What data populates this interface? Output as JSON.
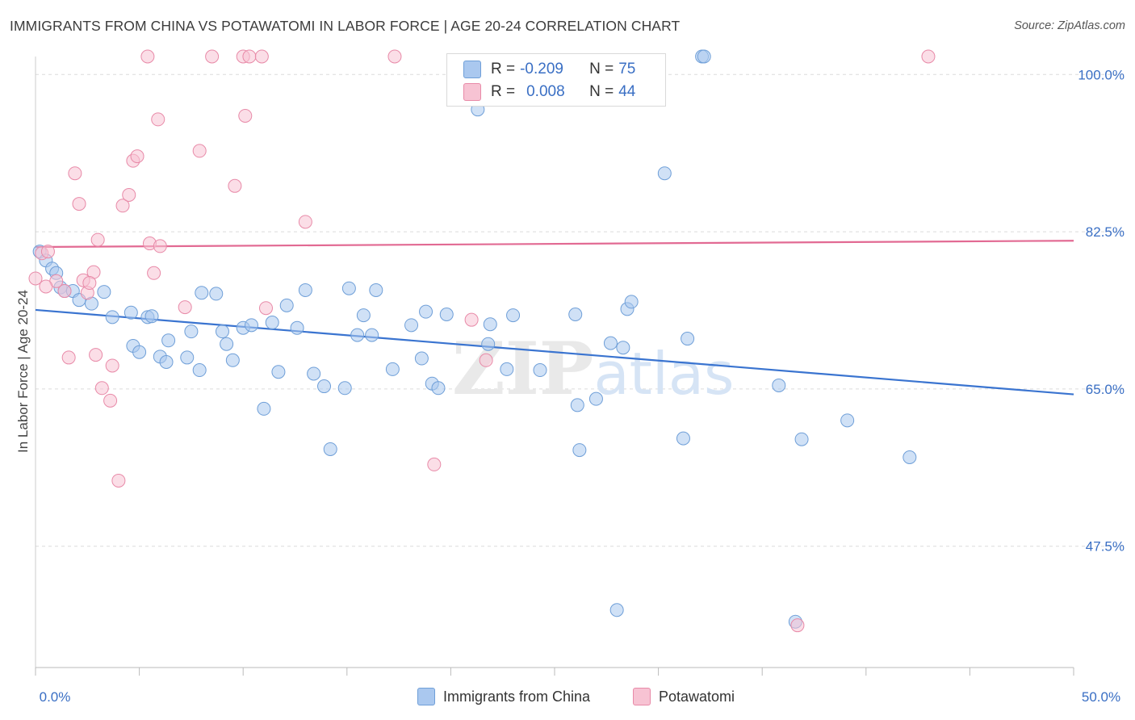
{
  "header": {
    "title": "IMMIGRANTS FROM CHINA VS POTAWATOMI IN LABOR FORCE | AGE 20-24 CORRELATION CHART",
    "source": "Source: ZipAtlas.com"
  },
  "watermark": "ZIPatlas",
  "legend": {
    "rows": [
      {
        "r_label": "R =",
        "r_value": "-0.209",
        "n_label": "N =",
        "n_value": "75",
        "color": "#aac8ef",
        "border": "#6f9fd8"
      },
      {
        "r_label": "R =",
        "r_value": "0.008",
        "n_label": "N =",
        "n_value": "44",
        "color": "#f7c3d3",
        "border": "#e88aa8"
      }
    ]
  },
  "bottom_legend": {
    "items": [
      {
        "label": "Immigrants from China",
        "color": "#aac8ef",
        "border": "#6f9fd8"
      },
      {
        "label": "Potawatomi",
        "color": "#f7c3d3",
        "border": "#e88aa8"
      }
    ]
  },
  "chart_data": {
    "type": "scatter",
    "title": "IMMIGRANTS FROM CHINA VS POTAWATOMI IN LABOR FORCE | AGE 20-24 CORRELATION CHART",
    "xlabel": "",
    "ylabel": "In Labor Force | Age 20-24",
    "xlim": [
      0,
      50
    ],
    "ylim": [
      34,
      102
    ],
    "x_tick_labels": [
      "0.0%",
      "50.0%"
    ],
    "y_ticks": [
      100.0,
      82.5,
      65.0,
      47.5
    ],
    "y_tick_labels": [
      "100.0%",
      "82.5%",
      "65.0%",
      "47.5%"
    ],
    "grid": true,
    "series": [
      {
        "name": "Immigrants from China",
        "color": "#aac8ef",
        "border": "#6f9fd8",
        "trend": {
          "x": [
            0,
            50
          ],
          "y": [
            73.8,
            64.4
          ],
          "color": "#3a74d0"
        },
        "points": [
          [
            0.2,
            80.3
          ],
          [
            0.5,
            79.3
          ],
          [
            0.8,
            78.4
          ],
          [
            1.0,
            77.9
          ],
          [
            1.2,
            76.3
          ],
          [
            1.4,
            75.9
          ],
          [
            1.8,
            75.9
          ],
          [
            2.1,
            74.9
          ],
          [
            2.7,
            74.5
          ],
          [
            3.3,
            75.8
          ],
          [
            3.7,
            73.0
          ],
          [
            4.6,
            73.5
          ],
          [
            4.7,
            69.8
          ],
          [
            5.0,
            69.1
          ],
          [
            5.4,
            73.0
          ],
          [
            5.6,
            73.1
          ],
          [
            6.0,
            68.6
          ],
          [
            6.3,
            68.0
          ],
          [
            6.4,
            70.4
          ],
          [
            7.3,
            68.5
          ],
          [
            7.5,
            71.4
          ],
          [
            7.9,
            67.1
          ],
          [
            8.0,
            75.7
          ],
          [
            8.7,
            75.6
          ],
          [
            9.0,
            71.4
          ],
          [
            9.2,
            70.0
          ],
          [
            9.5,
            68.2
          ],
          [
            10.0,
            71.8
          ],
          [
            10.4,
            72.1
          ],
          [
            11.0,
            62.8
          ],
          [
            11.4,
            72.4
          ],
          [
            11.7,
            66.9
          ],
          [
            12.1,
            74.3
          ],
          [
            12.6,
            71.8
          ],
          [
            13.0,
            76.0
          ],
          [
            13.4,
            66.7
          ],
          [
            13.9,
            65.3
          ],
          [
            14.2,
            58.3
          ],
          [
            14.9,
            65.1
          ],
          [
            15.1,
            76.2
          ],
          [
            15.5,
            71.0
          ],
          [
            15.8,
            73.2
          ],
          [
            16.2,
            71.0
          ],
          [
            16.4,
            76.0
          ],
          [
            17.2,
            67.2
          ],
          [
            18.1,
            72.1
          ],
          [
            18.6,
            68.4
          ],
          [
            18.8,
            73.6
          ],
          [
            19.1,
            65.6
          ],
          [
            19.4,
            65.1
          ],
          [
            19.8,
            73.3
          ],
          [
            21.3,
            96.1
          ],
          [
            21.8,
            70.0
          ],
          [
            21.9,
            72.2
          ],
          [
            22.7,
            67.2
          ],
          [
            23.0,
            73.2
          ],
          [
            24.3,
            67.1
          ],
          [
            26.0,
            73.3
          ],
          [
            26.1,
            63.2
          ],
          [
            26.2,
            58.2
          ],
          [
            27.0,
            63.9
          ],
          [
            27.7,
            70.1
          ],
          [
            28.3,
            69.6
          ],
          [
            28.5,
            73.9
          ],
          [
            28.7,
            74.7
          ],
          [
            28.0,
            40.4
          ],
          [
            30.3,
            89.0
          ],
          [
            31.2,
            59.5
          ],
          [
            31.4,
            70.6
          ],
          [
            32.1,
            102.0
          ],
          [
            32.2,
            102.0
          ],
          [
            35.8,
            65.4
          ],
          [
            36.9,
            59.4
          ],
          [
            39.1,
            61.5
          ],
          [
            42.1,
            57.4
          ],
          [
            36.6,
            39.1
          ]
        ]
      },
      {
        "name": "Potawatomi",
        "color": "#f7c3d3",
        "border": "#e88aa8",
        "trend": {
          "x": [
            0,
            50
          ],
          "y": [
            80.8,
            81.5
          ],
          "color": "#e26a93"
        },
        "points": [
          [
            0.0,
            77.3
          ],
          [
            0.3,
            80.1
          ],
          [
            0.6,
            80.3
          ],
          [
            1.0,
            77.0
          ],
          [
            1.4,
            75.9
          ],
          [
            1.6,
            68.5
          ],
          [
            1.9,
            89.0
          ],
          [
            2.1,
            85.6
          ],
          [
            2.3,
            77.1
          ],
          [
            2.5,
            75.7
          ],
          [
            2.8,
            78.0
          ],
          [
            2.9,
            68.8
          ],
          [
            3.0,
            81.6
          ],
          [
            3.2,
            65.1
          ],
          [
            3.6,
            63.7
          ],
          [
            3.7,
            67.6
          ],
          [
            4.0,
            54.8
          ],
          [
            4.2,
            85.4
          ],
          [
            4.5,
            86.6
          ],
          [
            4.7,
            90.4
          ],
          [
            4.9,
            90.9
          ],
          [
            5.4,
            102.0
          ],
          [
            5.5,
            81.2
          ],
          [
            5.7,
            77.9
          ],
          [
            5.9,
            95.0
          ],
          [
            6.0,
            80.9
          ],
          [
            7.2,
            74.1
          ],
          [
            7.9,
            91.5
          ],
          [
            8.5,
            102.0
          ],
          [
            9.6,
            87.6
          ],
          [
            10.1,
            95.4
          ],
          [
            10.0,
            102.0
          ],
          [
            10.3,
            102.0
          ],
          [
            10.9,
            102.0
          ],
          [
            11.1,
            74.0
          ],
          [
            13.0,
            83.6
          ],
          [
            17.3,
            102.0
          ],
          [
            19.2,
            56.6
          ],
          [
            21.0,
            72.7
          ],
          [
            21.7,
            68.2
          ],
          [
            36.7,
            38.7
          ],
          [
            43.0,
            102.0
          ],
          [
            0.5,
            76.4
          ],
          [
            2.6,
            76.8
          ]
        ]
      }
    ]
  }
}
